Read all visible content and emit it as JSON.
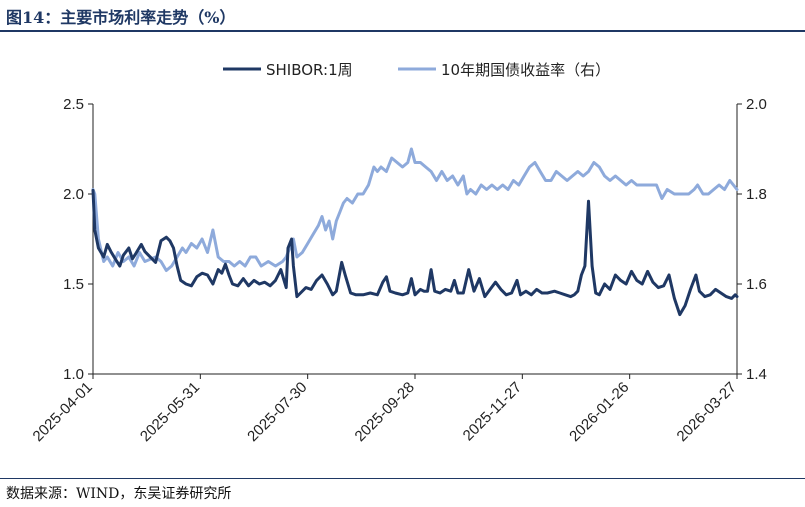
{
  "page": {
    "title": "图14：主要市场利率走势（%）",
    "source": "数据来源：WIND，东吴证券研究所"
  },
  "chart_data": {
    "type": "line",
    "title": "",
    "x_ticks": [
      "2025-04-01",
      "2025-05-31",
      "2025-07-30",
      "2025-09-28",
      "2025-11-27",
      "2026-01-26",
      "2026-03-27"
    ],
    "y_left": {
      "lim": [
        1.0,
        2.5
      ],
      "ticks": [
        "1.0",
        "1.5",
        "2.0",
        "2.5"
      ]
    },
    "y_right": {
      "lim": [
        1.4,
        2.0
      ],
      "ticks": [
        "1.4",
        "1.6",
        "1.8",
        "2.0"
      ]
    },
    "grid": false,
    "legend_position": "top-center",
    "series": [
      {
        "name": "SHIBOR:1周",
        "axis": "left",
        "color": "#1f3864",
        "points": [
          [
            "2025-04-01",
            2.02
          ],
          [
            "2025-04-02",
            1.8
          ],
          [
            "2025-04-04",
            1.7
          ],
          [
            "2025-04-07",
            1.65
          ],
          [
            "2025-04-09",
            1.72
          ],
          [
            "2025-04-11",
            1.68
          ],
          [
            "2025-04-14",
            1.63
          ],
          [
            "2025-04-16",
            1.6
          ],
          [
            "2025-04-18",
            1.66
          ],
          [
            "2025-04-21",
            1.7
          ],
          [
            "2025-04-23",
            1.64
          ],
          [
            "2025-04-25",
            1.67
          ],
          [
            "2025-04-28",
            1.72
          ],
          [
            "2025-04-30",
            1.68
          ],
          [
            "2025-05-06",
            1.62
          ],
          [
            "2025-05-09",
            1.74
          ],
          [
            "2025-05-12",
            1.76
          ],
          [
            "2025-05-14",
            1.74
          ],
          [
            "2025-05-16",
            1.7
          ],
          [
            "2025-05-18",
            1.6
          ],
          [
            "2025-05-20",
            1.52
          ],
          [
            "2025-05-23",
            1.5
          ],
          [
            "2025-05-26",
            1.49
          ],
          [
            "2025-05-29",
            1.54
          ],
          [
            "2025-06-01",
            1.56
          ],
          [
            "2025-06-04",
            1.55
          ],
          [
            "2025-06-07",
            1.5
          ],
          [
            "2025-06-10",
            1.58
          ],
          [
            "2025-06-12",
            1.56
          ],
          [
            "2025-06-14",
            1.61
          ],
          [
            "2025-06-16",
            1.55
          ],
          [
            "2025-06-18",
            1.5
          ],
          [
            "2025-06-21",
            1.49
          ],
          [
            "2025-06-24",
            1.53
          ],
          [
            "2025-06-27",
            1.49
          ],
          [
            "2025-06-30",
            1.52
          ],
          [
            "2025-07-03",
            1.5
          ],
          [
            "2025-07-06",
            1.51
          ],
          [
            "2025-07-09",
            1.49
          ],
          [
            "2025-07-12",
            1.52
          ],
          [
            "2025-07-15",
            1.58
          ],
          [
            "2025-07-18",
            1.48
          ],
          [
            "2025-07-19",
            1.7
          ],
          [
            "2025-07-21",
            1.75
          ],
          [
            "2025-07-22",
            1.6
          ],
          [
            "2025-07-24",
            1.43
          ],
          [
            "2025-07-26",
            1.45
          ],
          [
            "2025-07-29",
            1.48
          ],
          [
            "2025-08-01",
            1.47
          ],
          [
            "2025-08-04",
            1.52
          ],
          [
            "2025-08-07",
            1.55
          ],
          [
            "2025-08-10",
            1.5
          ],
          [
            "2025-08-13",
            1.44
          ],
          [
            "2025-08-15",
            1.46
          ],
          [
            "2025-08-18",
            1.62
          ],
          [
            "2025-08-20",
            1.55
          ],
          [
            "2025-08-23",
            1.45
          ],
          [
            "2025-08-26",
            1.44
          ],
          [
            "2025-08-30",
            1.44
          ],
          [
            "2025-09-03",
            1.45
          ],
          [
            "2025-09-07",
            1.44
          ],
          [
            "2025-09-10",
            1.51
          ],
          [
            "2025-09-12",
            1.54
          ],
          [
            "2025-09-14",
            1.46
          ],
          [
            "2025-09-17",
            1.45
          ],
          [
            "2025-09-21",
            1.44
          ],
          [
            "2025-09-24",
            1.45
          ],
          [
            "2025-09-26",
            1.53
          ],
          [
            "2025-09-28",
            1.44
          ],
          [
            "2025-10-01",
            1.47
          ],
          [
            "2025-10-03",
            1.46
          ],
          [
            "2025-10-05",
            1.46
          ],
          [
            "2025-10-07",
            1.58
          ],
          [
            "2025-10-09",
            1.46
          ],
          [
            "2025-10-12",
            1.45
          ],
          [
            "2025-10-15",
            1.47
          ],
          [
            "2025-10-18",
            1.46
          ],
          [
            "2025-10-20",
            1.52
          ],
          [
            "2025-10-22",
            1.45
          ],
          [
            "2025-10-25",
            1.45
          ],
          [
            "2025-10-28",
            1.58
          ],
          [
            "2025-10-31",
            1.46
          ],
          [
            "2025-11-03",
            1.53
          ],
          [
            "2025-11-06",
            1.43
          ],
          [
            "2025-11-09",
            1.47
          ],
          [
            "2025-11-12",
            1.51
          ],
          [
            "2025-11-15",
            1.47
          ],
          [
            "2025-11-18",
            1.44
          ],
          [
            "2025-11-21",
            1.45
          ],
          [
            "2025-11-24",
            1.52
          ],
          [
            "2025-11-26",
            1.44
          ],
          [
            "2025-11-29",
            1.46
          ],
          [
            "2025-12-02",
            1.44
          ],
          [
            "2025-12-05",
            1.47
          ],
          [
            "2025-12-08",
            1.45
          ],
          [
            "2025-12-11",
            1.45
          ],
          [
            "2025-12-15",
            1.46
          ],
          [
            "2025-12-18",
            1.45
          ],
          [
            "2025-12-21",
            1.44
          ],
          [
            "2025-12-24",
            1.43
          ],
          [
            "2025-12-26",
            1.44
          ],
          [
            "2025-12-28",
            1.46
          ],
          [
            "2025-12-30",
            1.55
          ],
          [
            "2026-01-01",
            1.6
          ],
          [
            "2026-01-03",
            1.96
          ],
          [
            "2026-01-05",
            1.6
          ],
          [
            "2026-01-07",
            1.45
          ],
          [
            "2026-01-09",
            1.44
          ],
          [
            "2026-01-12",
            1.5
          ],
          [
            "2026-01-15",
            1.47
          ],
          [
            "2026-01-18",
            1.55
          ],
          [
            "2026-01-21",
            1.52
          ],
          [
            "2026-01-24",
            1.5
          ],
          [
            "2026-01-27",
            1.57
          ],
          [
            "2026-01-30",
            1.52
          ],
          [
            "2026-02-02",
            1.5
          ],
          [
            "2026-02-05",
            1.57
          ],
          [
            "2026-02-08",
            1.51
          ],
          [
            "2026-02-11",
            1.48
          ],
          [
            "2026-02-14",
            1.49
          ],
          [
            "2026-02-17",
            1.55
          ],
          [
            "2026-02-20",
            1.42
          ],
          [
            "2026-02-23",
            1.33
          ],
          [
            "2026-02-26",
            1.38
          ],
          [
            "2026-03-01",
            1.47
          ],
          [
            "2026-03-04",
            1.55
          ],
          [
            "2026-03-06",
            1.46
          ],
          [
            "2026-03-09",
            1.43
          ],
          [
            "2026-03-12",
            1.44
          ],
          [
            "2026-03-15",
            1.47
          ],
          [
            "2026-03-18",
            1.45
          ],
          [
            "2026-03-21",
            1.43
          ],
          [
            "2026-03-24",
            1.42
          ],
          [
            "2026-03-26",
            1.44
          ],
          [
            "2026-03-27",
            1.43
          ]
        ]
      },
      {
        "name": "10年期国债收益率（右）",
        "axis": "right",
        "color": "#8eaadb",
        "points": [
          [
            "2025-04-01",
            1.81
          ],
          [
            "2025-04-02",
            1.8
          ],
          [
            "2025-04-04",
            1.7
          ],
          [
            "2025-04-07",
            1.65
          ],
          [
            "2025-04-09",
            1.66
          ],
          [
            "2025-04-12",
            1.64
          ],
          [
            "2025-04-15",
            1.67
          ],
          [
            "2025-04-18",
            1.65
          ],
          [
            "2025-04-21",
            1.66
          ],
          [
            "2025-04-24",
            1.64
          ],
          [
            "2025-04-27",
            1.67
          ],
          [
            "2025-04-30",
            1.65
          ],
          [
            "2025-05-06",
            1.66
          ],
          [
            "2025-05-09",
            1.65
          ],
          [
            "2025-05-12",
            1.63
          ],
          [
            "2025-05-15",
            1.64
          ],
          [
            "2025-05-18",
            1.66
          ],
          [
            "2025-05-21",
            1.68
          ],
          [
            "2025-05-23",
            1.67
          ],
          [
            "2025-05-26",
            1.69
          ],
          [
            "2025-05-29",
            1.68
          ],
          [
            "2025-06-01",
            1.7
          ],
          [
            "2025-06-04",
            1.67
          ],
          [
            "2025-06-07",
            1.72
          ],
          [
            "2025-06-10",
            1.66
          ],
          [
            "2025-06-13",
            1.65
          ],
          [
            "2025-06-16",
            1.65
          ],
          [
            "2025-06-19",
            1.64
          ],
          [
            "2025-06-22",
            1.65
          ],
          [
            "2025-06-25",
            1.64
          ],
          [
            "2025-06-28",
            1.66
          ],
          [
            "2025-07-01",
            1.66
          ],
          [
            "2025-07-04",
            1.64
          ],
          [
            "2025-07-08",
            1.65
          ],
          [
            "2025-07-12",
            1.64
          ],
          [
            "2025-07-16",
            1.65
          ],
          [
            "2025-07-18",
            1.66
          ],
          [
            "2025-07-20",
            1.68
          ],
          [
            "2025-07-22",
            1.7
          ],
          [
            "2025-07-24",
            1.66
          ],
          [
            "2025-07-27",
            1.67
          ],
          [
            "2025-07-30",
            1.69
          ],
          [
            "2025-08-02",
            1.71
          ],
          [
            "2025-08-05",
            1.73
          ],
          [
            "2025-08-07",
            1.75
          ],
          [
            "2025-08-09",
            1.72
          ],
          [
            "2025-08-11",
            1.74
          ],
          [
            "2025-08-13",
            1.7
          ],
          [
            "2025-08-15",
            1.74
          ],
          [
            "2025-08-17",
            1.76
          ],
          [
            "2025-08-19",
            1.78
          ],
          [
            "2025-08-21",
            1.79
          ],
          [
            "2025-08-24",
            1.78
          ],
          [
            "2025-08-27",
            1.8
          ],
          [
            "2025-08-30",
            1.8
          ],
          [
            "2025-09-02",
            1.82
          ],
          [
            "2025-09-05",
            1.86
          ],
          [
            "2025-09-07",
            1.85
          ],
          [
            "2025-09-09",
            1.86
          ],
          [
            "2025-09-12",
            1.85
          ],
          [
            "2025-09-15",
            1.88
          ],
          [
            "2025-09-18",
            1.87
          ],
          [
            "2025-09-21",
            1.86
          ],
          [
            "2025-09-24",
            1.87
          ],
          [
            "2025-09-26",
            1.9
          ],
          [
            "2025-09-28",
            1.87
          ],
          [
            "2025-10-01",
            1.87
          ],
          [
            "2025-10-04",
            1.86
          ],
          [
            "2025-10-07",
            1.85
          ],
          [
            "2025-10-10",
            1.83
          ],
          [
            "2025-10-13",
            1.85
          ],
          [
            "2025-10-16",
            1.83
          ],
          [
            "2025-10-19",
            1.84
          ],
          [
            "2025-10-22",
            1.82
          ],
          [
            "2025-10-25",
            1.84
          ],
          [
            "2025-10-27",
            1.8
          ],
          [
            "2025-10-29",
            1.81
          ],
          [
            "2025-11-01",
            1.8
          ],
          [
            "2025-11-04",
            1.82
          ],
          [
            "2025-11-07",
            1.81
          ],
          [
            "2025-11-10",
            1.82
          ],
          [
            "2025-11-13",
            1.81
          ],
          [
            "2025-11-16",
            1.82
          ],
          [
            "2025-11-19",
            1.81
          ],
          [
            "2025-11-22",
            1.83
          ],
          [
            "2025-11-25",
            1.82
          ],
          [
            "2025-11-28",
            1.84
          ],
          [
            "2025-12-01",
            1.86
          ],
          [
            "2025-12-04",
            1.87
          ],
          [
            "2025-12-07",
            1.85
          ],
          [
            "2025-12-10",
            1.83
          ],
          [
            "2025-12-13",
            1.83
          ],
          [
            "2025-12-16",
            1.85
          ],
          [
            "2025-12-19",
            1.84
          ],
          [
            "2025-12-22",
            1.83
          ],
          [
            "2025-12-25",
            1.84
          ],
          [
            "2025-12-28",
            1.85
          ],
          [
            "2025-12-31",
            1.84
          ],
          [
            "2026-01-03",
            1.85
          ],
          [
            "2026-01-06",
            1.87
          ],
          [
            "2026-01-09",
            1.86
          ],
          [
            "2026-01-12",
            1.84
          ],
          [
            "2026-01-15",
            1.83
          ],
          [
            "2026-01-18",
            1.84
          ],
          [
            "2026-01-21",
            1.83
          ],
          [
            "2026-01-24",
            1.82
          ],
          [
            "2026-01-27",
            1.83
          ],
          [
            "2026-01-30",
            1.82
          ],
          [
            "2026-02-02",
            1.82
          ],
          [
            "2026-02-06",
            1.82
          ],
          [
            "2026-02-10",
            1.82
          ],
          [
            "2026-02-13",
            1.79
          ],
          [
            "2026-02-16",
            1.81
          ],
          [
            "2026-02-20",
            1.8
          ],
          [
            "2026-02-24",
            1.8
          ],
          [
            "2026-02-28",
            1.8
          ],
          [
            "2026-03-03",
            1.81
          ],
          [
            "2026-03-05",
            1.82
          ],
          [
            "2026-03-08",
            1.8
          ],
          [
            "2026-03-11",
            1.8
          ],
          [
            "2026-03-14",
            1.81
          ],
          [
            "2026-03-17",
            1.82
          ],
          [
            "2026-03-20",
            1.81
          ],
          [
            "2026-03-23",
            1.83
          ],
          [
            "2026-03-25",
            1.82
          ],
          [
            "2026-03-27",
            1.81
          ]
        ]
      }
    ]
  }
}
